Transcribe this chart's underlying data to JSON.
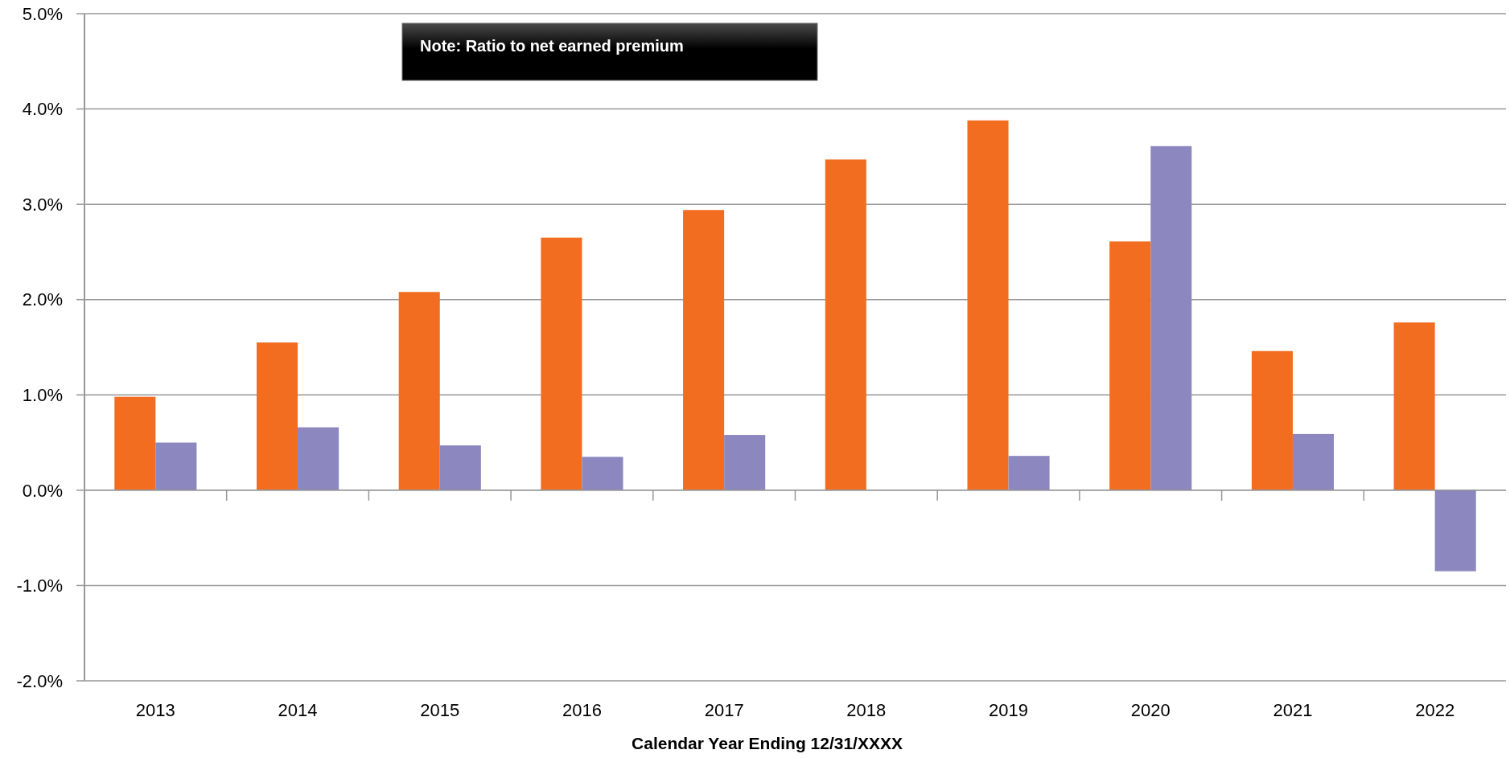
{
  "chart_data": {
    "type": "bar",
    "categories": [
      "2013",
      "2014",
      "2015",
      "2016",
      "2017",
      "2018",
      "2019",
      "2020",
      "2021",
      "2022"
    ],
    "series": [
      {
        "color": "#f36d21",
        "values": [
          0.98,
          1.55,
          2.08,
          2.65,
          2.94,
          3.47,
          3.88,
          2.61,
          1.46,
          1.76
        ]
      },
      {
        "color": "#8c87bf",
        "values": [
          0.5,
          0.66,
          0.47,
          0.35,
          0.58,
          null,
          0.36,
          3.61,
          0.59,
          -0.85
        ]
      }
    ],
    "xlabel": "Calendar Year Ending 12/31/XXXX",
    "ylim": [
      -2,
      5
    ],
    "yticks": [
      {
        "value": -2,
        "label": "-2.0%"
      },
      {
        "value": -1,
        "label": "-1.0%"
      },
      {
        "value": 0,
        "label": "0.0%"
      },
      {
        "value": 1,
        "label": "1.0%"
      },
      {
        "value": 2,
        "label": "2.0%"
      },
      {
        "value": 3,
        "label": "3.0%"
      },
      {
        "value": 4,
        "label": "4.0%"
      },
      {
        "value": 5,
        "label": "5.0%"
      }
    ],
    "grid": "y",
    "annotations": [
      "Note: Ratio to net earned premium"
    ]
  }
}
